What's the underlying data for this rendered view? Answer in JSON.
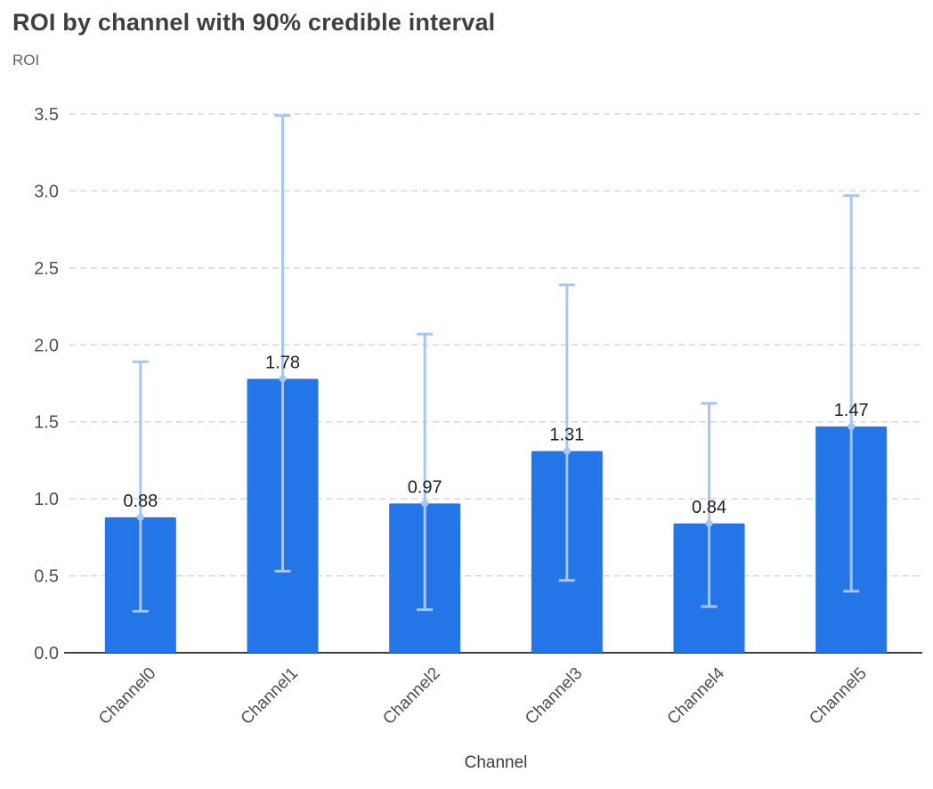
{
  "chart_data": {
    "type": "bar",
    "title": "ROI by channel with 90% credible interval",
    "ylabel": "ROI",
    "xlabel": "Channel",
    "interval_note": "90% credible interval",
    "categories": [
      "Channel0",
      "Channel1",
      "Channel2",
      "Channel3",
      "Channel4",
      "Channel5"
    ],
    "values": [
      0.88,
      1.78,
      0.97,
      1.31,
      0.84,
      1.47
    ],
    "bar_value_labels": [
      "0.88",
      "1.78",
      "0.97",
      "1.31",
      "0.84",
      "1.47"
    ],
    "error_low": [
      0.27,
      0.53,
      0.28,
      0.47,
      0.3,
      0.4
    ],
    "error_high": [
      1.89,
      3.49,
      2.07,
      2.39,
      1.62,
      2.97
    ],
    "ylim": [
      0,
      3.5
    ],
    "yticks": [
      0,
      0.5,
      1,
      1.5,
      2,
      2.5,
      3,
      3.5
    ],
    "ytick_labels": [
      "0.0",
      "0.5",
      "1.0",
      "1.5",
      "2.0",
      "2.5",
      "3.0",
      "3.5"
    ],
    "grid": "horizontal-dashed",
    "legend": "none",
    "colors": {
      "bar": "#2375e8",
      "error_bar": "#a6c6f7",
      "gridline": "#d8d8d8",
      "baseline": "#3c4043",
      "axis_text": "#4d5156",
      "axis_title": "#3c4043",
      "value_label": "#202124",
      "title": "#3c4043"
    }
  }
}
